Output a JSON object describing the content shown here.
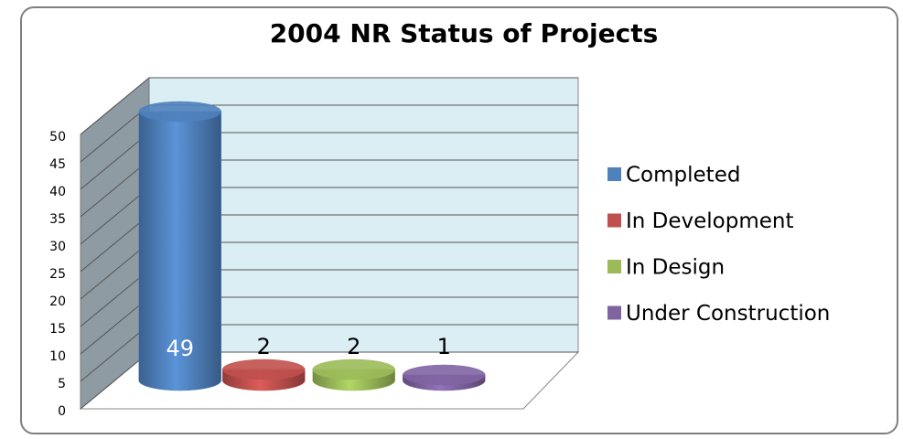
{
  "chart_data": {
    "type": "bar",
    "title": "2004 NR Status of Projects",
    "categories": [
      "Completed",
      "In Development",
      "In Design",
      "Under Construction"
    ],
    "values": [
      49,
      2,
      2,
      1
    ],
    "colors": [
      "#4f81bd",
      "#c0504d",
      "#9bbb59",
      "#8064a2"
    ],
    "ylim": [
      0,
      50
    ],
    "yticks": [
      0,
      5,
      10,
      15,
      20,
      25,
      30,
      35,
      40,
      45,
      50
    ],
    "grid": true,
    "legend": "right"
  }
}
